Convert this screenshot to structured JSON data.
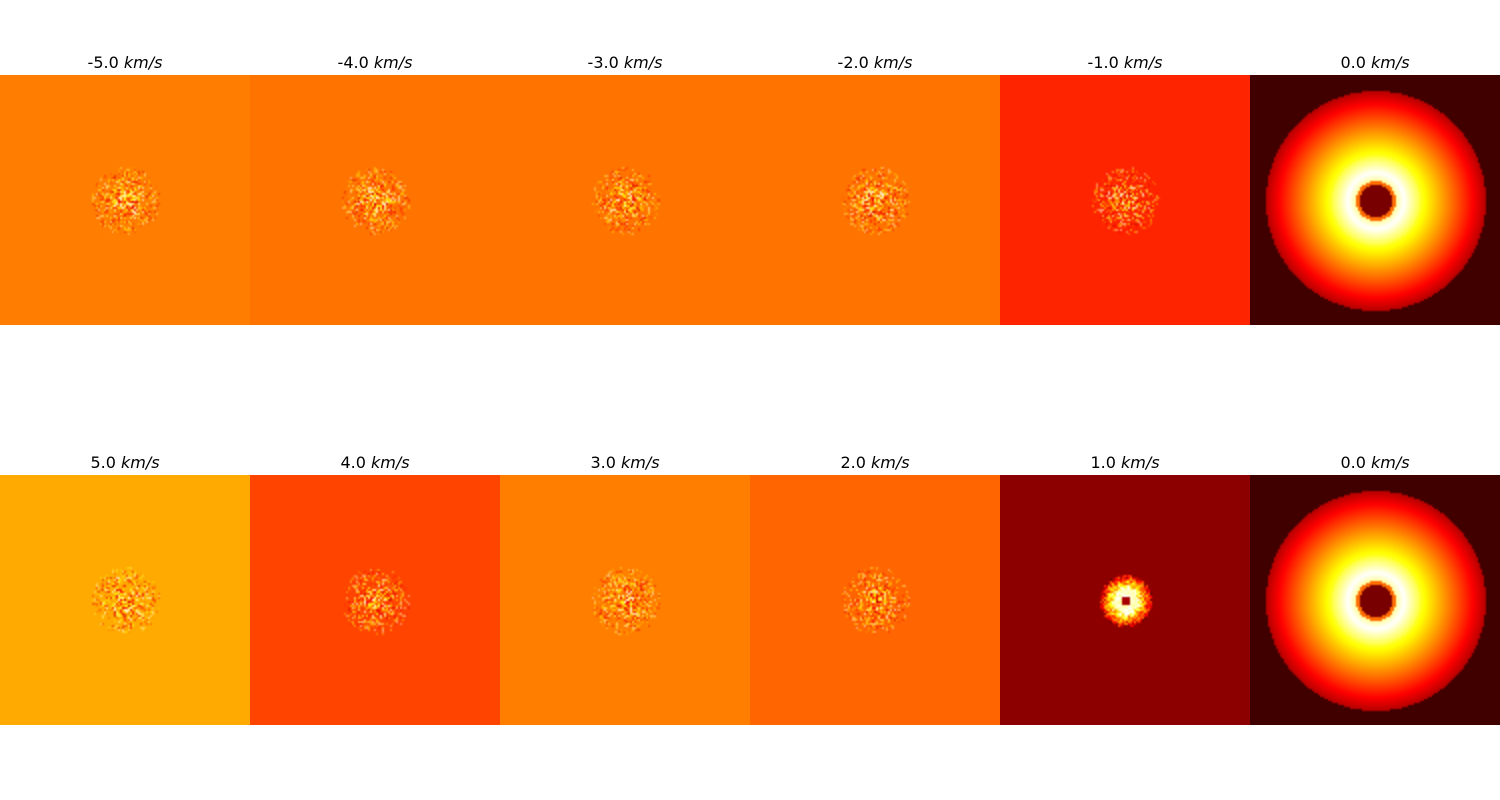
{
  "unit": "km/s",
  "rows": [
    {
      "panels": [
        {
          "velocity": "-5.0",
          "background": "#ff7d00",
          "cluster": "speckle"
        },
        {
          "velocity": "-4.0",
          "background": "#ff7300",
          "cluster": "speckle"
        },
        {
          "velocity": "-3.0",
          "background": "#ff7300",
          "cluster": "speckle"
        },
        {
          "velocity": "-2.0",
          "background": "#ff7300",
          "cluster": "speckle"
        },
        {
          "velocity": "-1.0",
          "background": "#ff2400",
          "cluster": "speckle"
        },
        {
          "velocity": "0.0",
          "background": "#410000",
          "cluster": "ring"
        }
      ]
    },
    {
      "panels": [
        {
          "velocity": "5.0",
          "background": "#ffaa00",
          "cluster": "speckle"
        },
        {
          "velocity": "4.0",
          "background": "#ff4400",
          "cluster": "speckle"
        },
        {
          "velocity": "3.0",
          "background": "#ff7e00",
          "cluster": "speckle"
        },
        {
          "velocity": "2.0",
          "background": "#ff6500",
          "cluster": "speckle"
        },
        {
          "velocity": "1.0",
          "background": "#8c0000",
          "cluster": "hotspot"
        },
        {
          "velocity": "0.0",
          "background": "#410000",
          "cluster": "ring"
        }
      ]
    }
  ]
}
